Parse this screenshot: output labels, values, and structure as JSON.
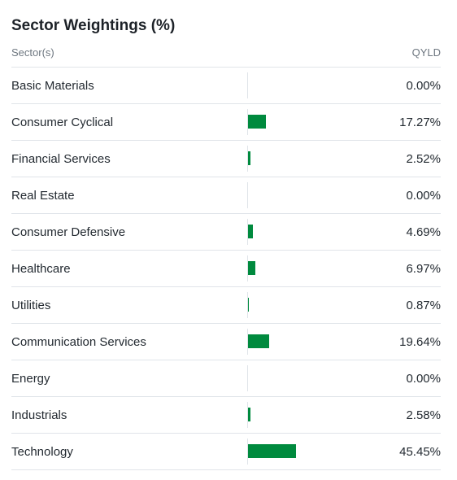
{
  "title": "Sector Weightings (%)",
  "header": {
    "sector_label": "Sector(s)",
    "fund_label": "QYLD"
  },
  "colors": {
    "bar": "#008a3e",
    "divider": "#e0e4e9"
  },
  "bar_scale_max_percent": 100,
  "sectors": [
    {
      "name": "Basic Materials",
      "value": "0.00%",
      "weight": 0.0
    },
    {
      "name": "Consumer Cyclical",
      "value": "17.27%",
      "weight": 17.27
    },
    {
      "name": "Financial Services",
      "value": "2.52%",
      "weight": 2.52
    },
    {
      "name": "Real Estate",
      "value": "0.00%",
      "weight": 0.0
    },
    {
      "name": "Consumer Defensive",
      "value": "4.69%",
      "weight": 4.69
    },
    {
      "name": "Healthcare",
      "value": "6.97%",
      "weight": 6.97
    },
    {
      "name": "Utilities",
      "value": "0.87%",
      "weight": 0.87
    },
    {
      "name": "Communication Services",
      "value": "19.64%",
      "weight": 19.64
    },
    {
      "name": "Energy",
      "value": "0.00%",
      "weight": 0.0
    },
    {
      "name": "Industrials",
      "value": "2.58%",
      "weight": 2.58
    },
    {
      "name": "Technology",
      "value": "45.45%",
      "weight": 45.45
    }
  ]
}
